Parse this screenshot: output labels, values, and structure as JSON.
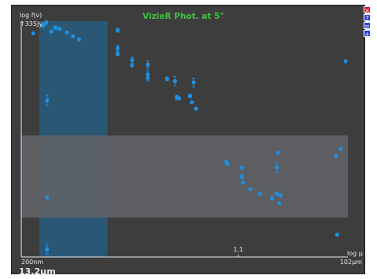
{
  "window": {
    "title": "VizieR Phot. at 5\""
  },
  "controls": [
    {
      "symbol": "×",
      "name": "close-icon",
      "color": "#d81b1b"
    },
    {
      "symbol": "?",
      "name": "help-icon",
      "color": "#2a3fd6"
    },
    {
      "symbol": "≈",
      "name": "options-icon",
      "color": "#2a3fd6"
    },
    {
      "symbol": "+",
      "name": "zoom-in-icon",
      "color": "#2a3fd6"
    }
  ],
  "status": {
    "wavelength": "13.2μm"
  },
  "chart_data": {
    "type": "scatter",
    "title": "VizieR Phot. at 5\"",
    "ylabel": "log f(ν)",
    "ytop_label": "↑335Jy",
    "xlabel": "log μ",
    "x_left_label": "200nm",
    "x_right_label": "102μm",
    "x_mid_tick": "1.1",
    "x_log_range": [
      -0.699,
      2.0086
    ],
    "y_log_range": [
      -3.8,
      2.525
    ],
    "grid": false,
    "colors": {
      "points": "#1e90e0",
      "background": "#3d3d3d",
      "axis": "#e8e8e8",
      "title": "#3ec23e",
      "band_vertical": "#2a5874",
      "band_horizontal": "#5f6266"
    },
    "bands": {
      "vertical_x_log": [
        -0.55,
        0.015
      ],
      "horizontal_y_log": [
        -2.74,
        -0.54
      ]
    },
    "series": [
      {
        "points": [
          {
            "x": -0.6,
            "y": 2.2
          },
          {
            "x": -0.52,
            "y": 2.4
          },
          {
            "x": -0.5,
            "y": 2.46
          },
          {
            "x": -0.49,
            "y": 2.5
          },
          {
            "x": -0.45,
            "y": 2.25
          },
          {
            "x": -0.42,
            "y": 2.36
          },
          {
            "x": -0.41,
            "y": 2.34
          },
          {
            "x": -0.38,
            "y": 2.32
          },
          {
            "x": -0.32,
            "y": 2.22
          },
          {
            "x": -0.27,
            "y": 2.12
          },
          {
            "x": -0.22,
            "y": 2.04
          },
          {
            "x": -0.485,
            "y": 0.4,
            "err": 0.14
          },
          {
            "x": -0.485,
            "y": -2.2
          },
          {
            "x": -0.485,
            "y": -3.6,
            "err": 0.14
          },
          {
            "x": 0.1,
            "y": 2.28,
            "err": 0.05
          },
          {
            "x": 0.1,
            "y": 1.8,
            "err": 0.08
          },
          {
            "x": 0.1,
            "y": 1.65,
            "err": 0.05
          },
          {
            "x": 0.22,
            "y": 1.48,
            "err": 0.08
          },
          {
            "x": 0.22,
            "y": 1.34
          },
          {
            "x": 0.35,
            "y": 1.36,
            "err": 0.1
          },
          {
            "x": 0.35,
            "y": 1.1,
            "err": 0.1
          },
          {
            "x": 0.35,
            "y": 1.0,
            "err": 0.08
          },
          {
            "x": 0.51,
            "y": 0.98,
            "err": 0.05
          },
          {
            "x": 0.575,
            "y": 0.92,
            "err": 0.12
          },
          {
            "x": 0.59,
            "y": 0.48,
            "err": 0.06
          },
          {
            "x": 0.61,
            "y": 0.46
          },
          {
            "x": 0.7,
            "y": 0.52,
            "err": 0.05
          },
          {
            "x": 0.715,
            "y": 0.35
          },
          {
            "x": 0.73,
            "y": 0.88,
            "err": 0.12
          },
          {
            "x": 0.75,
            "y": 0.18
          },
          {
            "x": 1.0,
            "y": -1.25
          },
          {
            "x": 1.01,
            "y": -1.3
          },
          {
            "x": 1.13,
            "y": -1.4
          },
          {
            "x": 1.13,
            "y": -1.64,
            "err": 0.06
          },
          {
            "x": 1.14,
            "y": -1.8
          },
          {
            "x": 1.2,
            "y": -1.98
          },
          {
            "x": 1.28,
            "y": -2.1
          },
          {
            "x": 1.38,
            "y": -2.22,
            "err": 0.05
          },
          {
            "x": 1.42,
            "y": -2.1
          },
          {
            "x": 1.42,
            "y": -1.4,
            "err": 0.14
          },
          {
            "x": 1.43,
            "y": -1.0,
            "err": 0.04
          },
          {
            "x": 1.44,
            "y": -2.36
          },
          {
            "x": 1.45,
            "y": -2.15
          },
          {
            "x": 1.91,
            "y": -1.1
          },
          {
            "x": 1.92,
            "y": -3.2
          },
          {
            "x": 1.95,
            "y": -0.9
          },
          {
            "x": 1.99,
            "y": 1.45
          }
        ]
      }
    ]
  }
}
